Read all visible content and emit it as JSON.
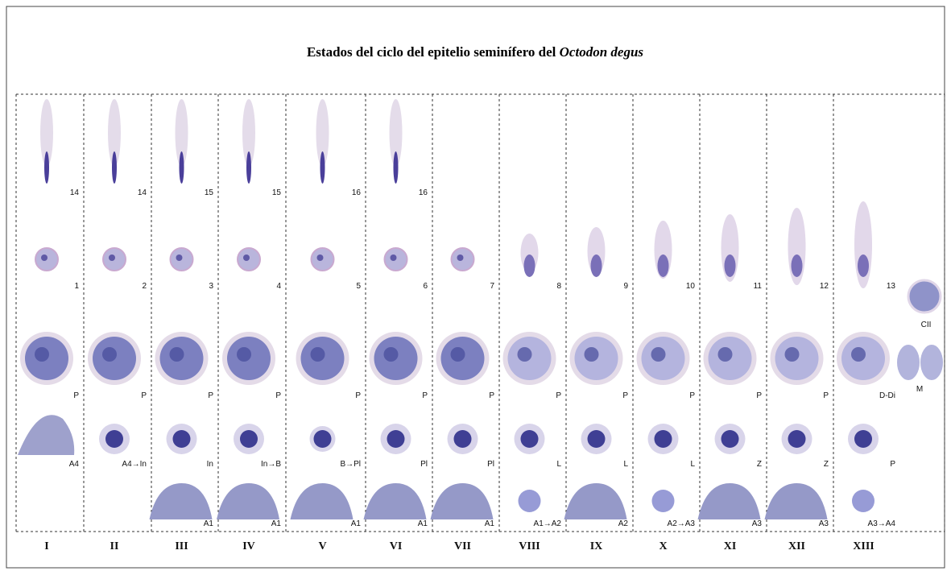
{
  "title": {
    "text": "Estados del ciclo del epitelio seminífero del ",
    "italic": "Octodon degus"
  },
  "columns": [
    {
      "stage": "I",
      "late_step": "14",
      "step": "1",
      "row3": "P",
      "row4": "A4"
    },
    {
      "stage": "II",
      "late_step": "14",
      "step": "2",
      "row3": "P",
      "row4": "A4→In"
    },
    {
      "stage": "III",
      "late_step": "15",
      "step": "3",
      "row3": "P",
      "row4": "In",
      "row5": "A1"
    },
    {
      "stage": "IV",
      "late_step": "15",
      "step": "4",
      "row3": "P",
      "row4": "In→B",
      "row5": "A1"
    },
    {
      "stage": "V",
      "late_step": "16",
      "step": "5",
      "row3": "P",
      "row4": "B→Pl",
      "row5": "A1"
    },
    {
      "stage": "VI",
      "late_step": "16",
      "step": "6",
      "row3": "P",
      "row4": "Pl",
      "row5": "A1"
    },
    {
      "stage": "VII",
      "step": "7",
      "row3": "P",
      "row4": "Pl",
      "row5": "A1"
    },
    {
      "stage": "VIII",
      "step": "8",
      "row3": "P",
      "row4": "L",
      "row5": "A1→A2"
    },
    {
      "stage": "IX",
      "step": "9",
      "row3": "P",
      "row4": "L",
      "row5": "A2"
    },
    {
      "stage": "X",
      "step": "10",
      "row3": "P",
      "row4": "L",
      "row5": "A2→A3"
    },
    {
      "stage": "XI",
      "step": "11",
      "row3": "P",
      "row4": "Z",
      "row5": "A3"
    },
    {
      "stage": "XII",
      "step": "12",
      "row3": "P",
      "row4": "Z",
      "row5": "A3"
    },
    {
      "stage": "XIII",
      "step": "13",
      "row3": "D-Di",
      "row4": "P",
      "row5": "A3→A4",
      "extra": [
        "CII",
        "M"
      ]
    }
  ]
}
